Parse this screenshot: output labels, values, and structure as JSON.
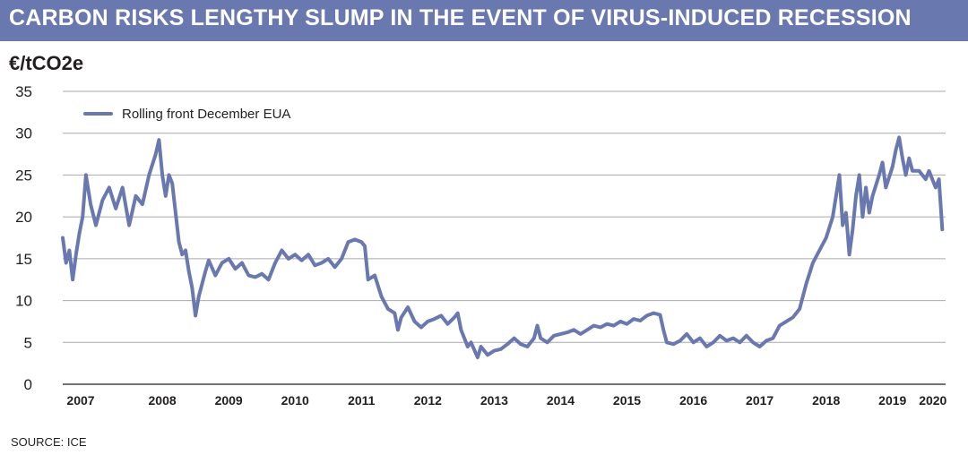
{
  "header": {
    "title": "CARBON RISKS LENGTHY SLUMP IN THE EVENT OF VIRUS-INDUCED RECESSION"
  },
  "source": "SOURCE: ICE",
  "colors": {
    "banner": "#6a78b0",
    "series": "#6a78b0",
    "grid": "#a7a9ac"
  },
  "chart_data": {
    "type": "line",
    "ylabel": "€/tCO2e",
    "ylim": [
      0,
      35
    ],
    "yticks": [
      0,
      5,
      10,
      15,
      20,
      25,
      30,
      35
    ],
    "xlim": [
      2007.0,
      2020.3
    ],
    "xticks": [
      2007,
      2008,
      2009,
      2010,
      2011,
      2012,
      2013,
      2014,
      2015,
      2016,
      2017,
      2018,
      2019,
      2020
    ],
    "grid": true,
    "legend_position": "top-left",
    "series": [
      {
        "name": "Rolling front December EUA",
        "x": [
          2007.0,
          2007.05,
          2007.1,
          2007.15,
          2007.2,
          2007.25,
          2007.3,
          2007.35,
          2007.42,
          2007.5,
          2007.6,
          2007.7,
          2007.8,
          2007.9,
          2008.0,
          2008.1,
          2008.2,
          2008.3,
          2008.4,
          2008.45,
          2008.5,
          2008.55,
          2008.6,
          2008.65,
          2008.7,
          2008.75,
          2008.8,
          2008.85,
          2008.9,
          2008.95,
          2009.0,
          2009.05,
          2009.1,
          2009.15,
          2009.2,
          2009.3,
          2009.4,
          2009.5,
          2009.6,
          2009.7,
          2009.8,
          2009.9,
          2010.0,
          2010.1,
          2010.2,
          2010.3,
          2010.4,
          2010.5,
          2010.6,
          2010.7,
          2010.8,
          2010.9,
          2011.0,
          2011.1,
          2011.2,
          2011.3,
          2011.4,
          2011.5,
          2011.55,
          2011.6,
          2011.7,
          2011.8,
          2011.9,
          2012.0,
          2012.05,
          2012.1,
          2012.2,
          2012.3,
          2012.4,
          2012.5,
          2012.6,
          2012.7,
          2012.8,
          2012.9,
          2012.95,
          2013.0,
          2013.1,
          2013.15,
          2013.25,
          2013.3,
          2013.4,
          2013.5,
          2013.6,
          2013.7,
          2013.8,
          2013.9,
          2014.0,
          2014.1,
          2014.15,
          2014.2,
          2014.3,
          2014.4,
          2014.5,
          2014.6,
          2014.7,
          2014.8,
          2014.9,
          2015.0,
          2015.1,
          2015.2,
          2015.3,
          2015.4,
          2015.5,
          2015.6,
          2015.7,
          2015.8,
          2015.9,
          2016.0,
          2016.05,
          2016.1,
          2016.2,
          2016.3,
          2016.4,
          2016.5,
          2016.6,
          2016.7,
          2016.8,
          2016.9,
          2017.0,
          2017.1,
          2017.2,
          2017.3,
          2017.4,
          2017.5,
          2017.6,
          2017.7,
          2017.8,
          2017.9,
          2018.0,
          2018.1,
          2018.2,
          2018.3,
          2018.4,
          2018.5,
          2018.6,
          2018.65,
          2018.7,
          2018.75,
          2018.8,
          2018.85,
          2018.9,
          2018.95,
          2019.0,
          2019.05,
          2019.1,
          2019.15,
          2019.2,
          2019.3,
          2019.35,
          2019.4,
          2019.5,
          2019.55,
          2019.6,
          2019.65,
          2019.7,
          2019.75,
          2019.8,
          2019.9,
          2020.0,
          2020.05,
          2020.1,
          2020.15,
          2020.2,
          2020.25
        ],
        "values": [
          17.5,
          14.5,
          16.0,
          12.5,
          15.5,
          18.0,
          20.0,
          25.0,
          21.5,
          19.0,
          22.0,
          23.5,
          21.0,
          23.5,
          19.0,
          22.5,
          21.5,
          25.0,
          27.5,
          29.2,
          25.0,
          22.5,
          25.0,
          24.0,
          20.5,
          17.0,
          15.5,
          16.0,
          13.5,
          11.5,
          8.2,
          10.5,
          12.0,
          13.5,
          14.8,
          13.0,
          14.5,
          15.0,
          13.8,
          14.5,
          13.0,
          12.8,
          13.2,
          12.5,
          14.5,
          16.0,
          15.0,
          15.5,
          14.8,
          15.5,
          14.2,
          14.5,
          15.0,
          14.0,
          15.0,
          17.0,
          17.3,
          17.0,
          16.5,
          12.5,
          13.0,
          10.5,
          9.0,
          8.5,
          6.5,
          8.0,
          9.2,
          7.5,
          6.8,
          7.5,
          7.8,
          8.2,
          7.2,
          8.0,
          8.5,
          6.5,
          4.5,
          5.0,
          3.2,
          4.5,
          3.5,
          4.0,
          4.2,
          4.8,
          5.5,
          4.8,
          4.5,
          5.5,
          7.0,
          5.5,
          5.0,
          5.8,
          6.0,
          6.2,
          6.5,
          6.0,
          6.5,
          7.0,
          6.8,
          7.2,
          7.0,
          7.5,
          7.2,
          7.8,
          7.6,
          8.2,
          8.5,
          8.3,
          6.5,
          5.0,
          4.8,
          5.2,
          6.0,
          5.0,
          5.5,
          4.5,
          5.0,
          5.8,
          5.2,
          5.5,
          5.0,
          5.8,
          5.0,
          4.5,
          5.2,
          5.5,
          7.0,
          7.5,
          8.0,
          9.0,
          12.0,
          14.5,
          16.0,
          17.5,
          20.0,
          22.5,
          25.0,
          19.0,
          20.5,
          15.5,
          18.5,
          22.5,
          25.0,
          20.0,
          23.5,
          20.5,
          22.5,
          25.0,
          26.5,
          23.5,
          26.0,
          28.0,
          29.5,
          27.0,
          25.0,
          27.0,
          25.5,
          25.5,
          24.5,
          25.5,
          24.5,
          23.5,
          24.5,
          18.5
        ]
      }
    ]
  }
}
